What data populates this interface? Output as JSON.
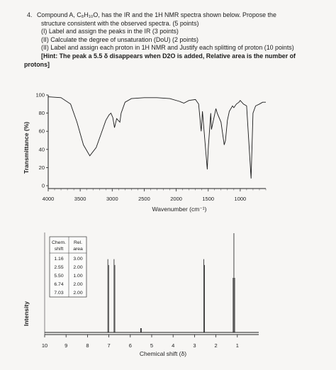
{
  "question": {
    "number": "4.",
    "line1": "Compound A, C₈H₁₀O, has the IR and the 1H NMR spectra shown below. Propose the",
    "line2": "structure consistent with the observed spectra. (5 points)",
    "part1": "(I) Label and assign the peaks in the IR (3 points)",
    "part2": "(II) Calculate the degree of unsaturation (DoU) (2 points)",
    "part3": "(II) Label and assign each proton in 1H NMR and Justify each splitting of proton (10 points)",
    "hint_label": "[Hint:",
    "hint_text": " The peak a 5.5 δ disappears when D2O is added, Relative area is the number of",
    "hint_end": "protons]"
  },
  "ir": {
    "ylabel": "Transmittance (%)",
    "xlabel": "Wavenumber (cm⁻¹)",
    "yticks": [
      "100",
      "80",
      "60",
      "40",
      "20",
      "0"
    ],
    "xticks": [
      "4000",
      "3500",
      "3000",
      "2500",
      "2000",
      "1500",
      "1000"
    ]
  },
  "nmr": {
    "ylabel": "Intensity",
    "xlabel": "Chemical shift (δ)",
    "xticks": [
      "10",
      "9",
      "8",
      "7",
      "6",
      "5",
      "4",
      "3",
      "2",
      "1"
    ],
    "table": {
      "col1_header": [
        "Chem.",
        "shift"
      ],
      "col2_header": [
        "Rel.",
        "area"
      ],
      "rows": [
        [
          "1.16",
          "3.00"
        ],
        [
          "2.55",
          "2.00"
        ],
        [
          "5.50",
          "1.00"
        ],
        [
          "6.74",
          "2.00"
        ],
        [
          "7.03",
          "2.00"
        ]
      ]
    }
  },
  "chart_data": [
    {
      "type": "line",
      "xlabel": "Wavenumber (cm⁻¹)",
      "ylabel": "Transmittance (%)",
      "xlim": [
        4000,
        600
      ],
      "ylim": [
        0,
        100
      ],
      "x": [
        4000,
        3800,
        3650,
        3550,
        3450,
        3350,
        3250,
        3150,
        3100,
        3050,
        3020,
        2990,
        2965,
        2930,
        2880,
        2860,
        2800,
        2700,
        2500,
        2300,
        2100,
        1950,
        1880,
        1800,
        1700,
        1650,
        1610,
        1600,
        1590,
        1515,
        1500,
        1460,
        1450,
        1380,
        1360,
        1300,
        1250,
        1230,
        1200,
        1170,
        1120,
        1100,
        1060,
        1020,
        1000,
        950,
        900,
        830,
        800,
        760,
        700,
        650,
        600
      ],
      "y": [
        98,
        97,
        90,
        70,
        45,
        33,
        42,
        62,
        72,
        78,
        80,
        75,
        64,
        74,
        70,
        80,
        92,
        96,
        97,
        97,
        96,
        93,
        91,
        94,
        95,
        90,
        60,
        70,
        82,
        18,
        40,
        80,
        62,
        85,
        80,
        70,
        45,
        50,
        72,
        82,
        88,
        86,
        90,
        92,
        94,
        90,
        88,
        8,
        80,
        88,
        90,
        92,
        92
      ]
    },
    {
      "type": "line",
      "xlabel": "Chemical shift (δ)",
      "ylabel": "Intensity",
      "xlim": [
        10,
        0
      ],
      "peaks_ppm": [
        7.03,
        6.74,
        5.5,
        2.55,
        1.16
      ],
      "relative_area": [
        2.0,
        2.0,
        1.0,
        2.0,
        3.0
      ]
    }
  ]
}
